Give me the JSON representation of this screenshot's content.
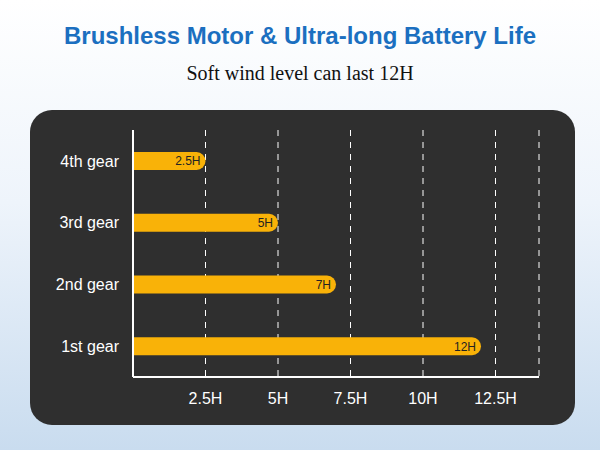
{
  "chart_data": {
    "type": "bar",
    "title": "Brushless Motor & Ultra-long Battery Life",
    "subtitle": "Soft wind level can last 12H",
    "orientation": "horizontal",
    "categories": [
      "4th gear",
      "3rd gear",
      "2nd gear",
      "1st gear"
    ],
    "values": [
      2.5,
      5,
      7,
      12
    ],
    "value_labels": [
      "2.5H",
      "5H",
      "7H",
      "12H"
    ],
    "color": "#f9b208",
    "data_labels": true,
    "grid": true,
    "xlim": [
      0,
      14
    ],
    "xticks": [
      {
        "value": 2.5,
        "label": "2.5H"
      },
      {
        "value": 5,
        "label": "5H"
      },
      {
        "value": 7.5,
        "label": "7.5H"
      },
      {
        "value": 10,
        "label": "10H"
      },
      {
        "value": 12.5,
        "label": "12.5H"
      }
    ]
  }
}
